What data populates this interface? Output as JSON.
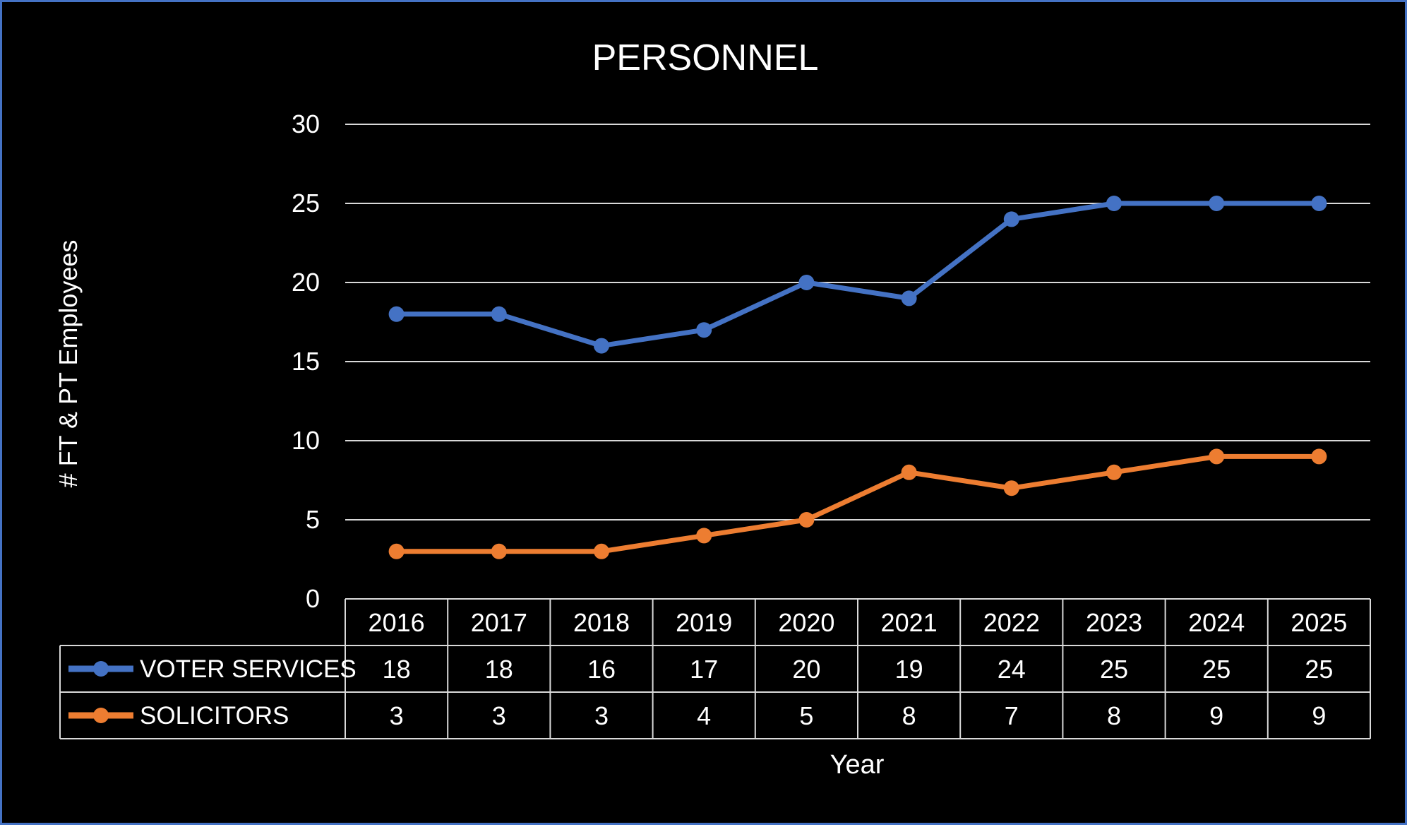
{
  "chart_data": {
    "type": "line",
    "title": "PERSONNEL",
    "xlabel": "Year",
    "ylabel": "# FT & PT Employees",
    "categories": [
      "2016",
      "2017",
      "2018",
      "2019",
      "2020",
      "2021",
      "2022",
      "2023",
      "2024",
      "2025"
    ],
    "yticks": [
      "0",
      "5",
      "10",
      "15",
      "20",
      "25",
      "30"
    ],
    "ylim": [
      0,
      30
    ],
    "grid": true,
    "data_table": true,
    "series": [
      {
        "name": "VOTER SERVICES",
        "color": "#4472c4",
        "values": [
          18,
          18,
          16,
          17,
          20,
          19,
          24,
          25,
          25,
          25
        ]
      },
      {
        "name": "SOLICITORS",
        "color": "#ed7d31",
        "values": [
          3,
          3,
          3,
          4,
          5,
          8,
          7,
          8,
          9,
          9
        ]
      }
    ]
  }
}
